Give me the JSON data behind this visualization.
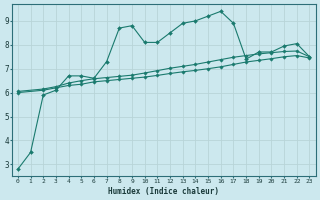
{
  "xlabel": "Humidex (Indice chaleur)",
  "ylabel": "",
  "background_color": "#cce8ee",
  "grid_color": "#b8d4d8",
  "line_color": "#1a7a6e",
  "xlim": [
    -0.5,
    23.5
  ],
  "ylim": [
    2.5,
    9.7
  ],
  "xticks": [
    0,
    1,
    2,
    3,
    4,
    5,
    6,
    7,
    8,
    9,
    10,
    11,
    12,
    13,
    14,
    15,
    16,
    17,
    18,
    19,
    20,
    21,
    22,
    23
  ],
  "yticks": [
    3,
    4,
    5,
    6,
    7,
    8,
    9
  ],
  "line1_x": [
    0,
    1,
    2,
    3,
    4,
    5,
    6,
    7,
    8,
    9,
    10,
    11,
    12,
    13,
    14,
    15,
    16,
    17,
    18,
    19,
    20,
    21,
    22,
    23
  ],
  "line1_y": [
    2.8,
    3.5,
    5.9,
    6.1,
    6.7,
    6.7,
    6.6,
    7.3,
    8.7,
    8.8,
    8.1,
    8.1,
    8.5,
    8.9,
    9.0,
    9.2,
    9.4,
    8.9,
    7.4,
    7.7,
    7.7,
    7.95,
    8.05,
    7.5
  ],
  "line2_x": [
    0,
    2,
    3,
    4,
    5,
    6,
    7,
    8,
    9,
    10,
    11,
    12,
    13,
    14,
    15,
    16,
    17,
    18,
    19,
    20,
    21,
    22,
    23
  ],
  "line2_y": [
    6.0,
    6.1,
    6.2,
    6.3,
    6.35,
    6.45,
    6.5,
    6.55,
    6.6,
    6.65,
    6.72,
    6.8,
    6.87,
    6.93,
    7.0,
    7.08,
    7.18,
    7.28,
    7.35,
    7.42,
    7.5,
    7.55,
    7.45
  ],
  "line3_x": [
    0,
    2,
    3,
    4,
    5,
    6,
    7,
    8,
    9,
    10,
    11,
    12,
    13,
    14,
    15,
    16,
    17,
    18,
    19,
    20,
    21,
    22,
    23
  ],
  "line3_y": [
    6.05,
    6.15,
    6.25,
    6.4,
    6.5,
    6.58,
    6.63,
    6.68,
    6.73,
    6.82,
    6.92,
    7.02,
    7.1,
    7.18,
    7.28,
    7.38,
    7.48,
    7.55,
    7.62,
    7.67,
    7.72,
    7.74,
    7.5
  ]
}
